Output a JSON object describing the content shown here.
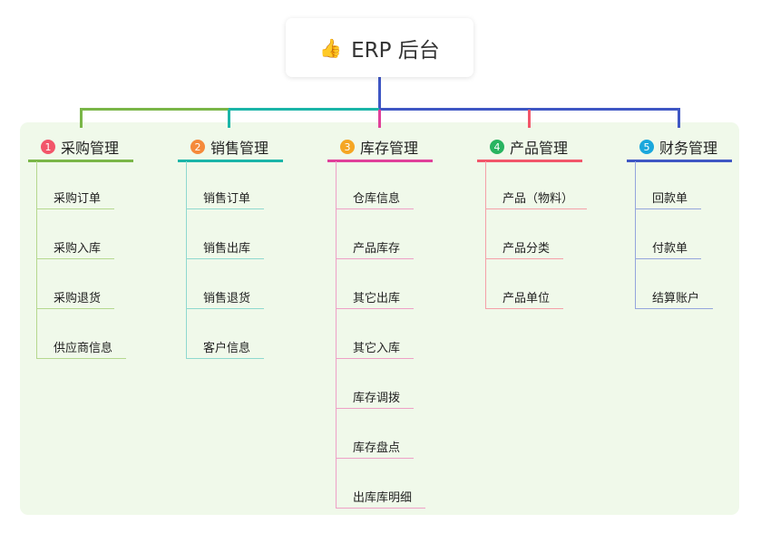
{
  "root": {
    "icon": "thumbs-up-icon",
    "title": "ERP 后台"
  },
  "branches": [
    {
      "number": "1",
      "title": "采购管理",
      "color": "#7ab648",
      "light": "#b5d88f",
      "badge": "#f2566a",
      "children": [
        "采购订单",
        "采购入库",
        "采购退货",
        "供应商信息"
      ]
    },
    {
      "number": "2",
      "title": "销售管理",
      "color": "#1bb5a8",
      "light": "#8fd9cf",
      "badge": "#f58a3b",
      "children": [
        "销售订单",
        "销售出库",
        "销售退货",
        "客户信息"
      ]
    },
    {
      "number": "3",
      "title": "库存管理",
      "color": "#e0409a",
      "light": "#eea0c6",
      "badge": "#f5a623",
      "children": [
        "仓库信息",
        "产品库存",
        "其它出库",
        "其它入库",
        "库存调拨",
        "库存盘点",
        "出库库明细"
      ]
    },
    {
      "number": "4",
      "title": "产品管理",
      "color": "#f2566a",
      "light": "#f5a0a8",
      "badge": "#28b460",
      "children": [
        "产品（物料）",
        "产品分类",
        "产品单位"
      ]
    },
    {
      "number": "5",
      "title": "财务管理",
      "color": "#3f57c4",
      "light": "#94a5dc",
      "badge": "#1aa7dc",
      "children": [
        "回款单",
        "付款单",
        "结算账户"
      ]
    }
  ]
}
